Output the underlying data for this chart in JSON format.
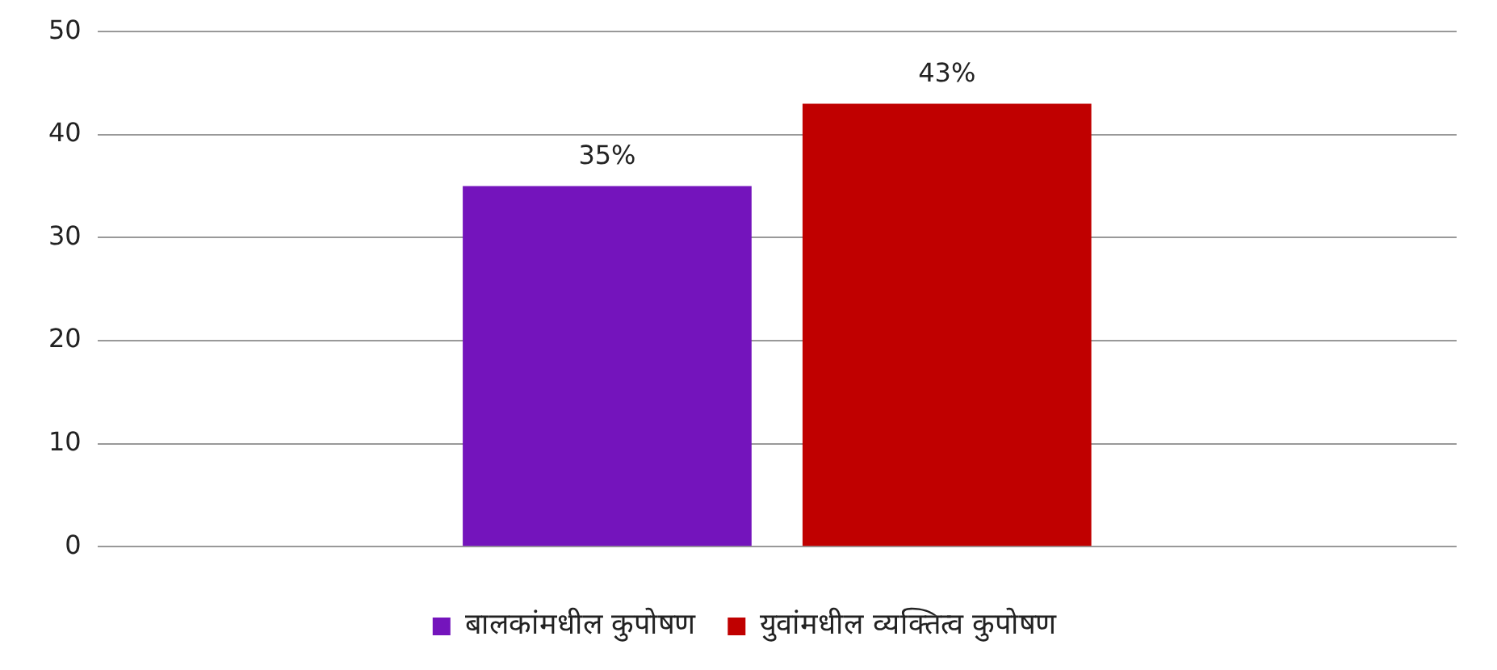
{
  "chart_data": {
    "type": "bar",
    "categories": [
      null
    ],
    "series": [
      {
        "name": "बालकांमधील कुपोषण",
        "color": "#7414bc",
        "values": [
          35
        ],
        "value_labels": [
          "35%"
        ]
      },
      {
        "name": "युवांमधील व्यक्तित्व कुपोषण",
        "color": "#c00000",
        "values": [
          43
        ],
        "value_labels": [
          "43%"
        ]
      }
    ],
    "ylim": [
      0,
      50
    ],
    "yticks": [
      0,
      10,
      20,
      30,
      40,
      50
    ],
    "grid": "y",
    "legend": "bottom"
  }
}
